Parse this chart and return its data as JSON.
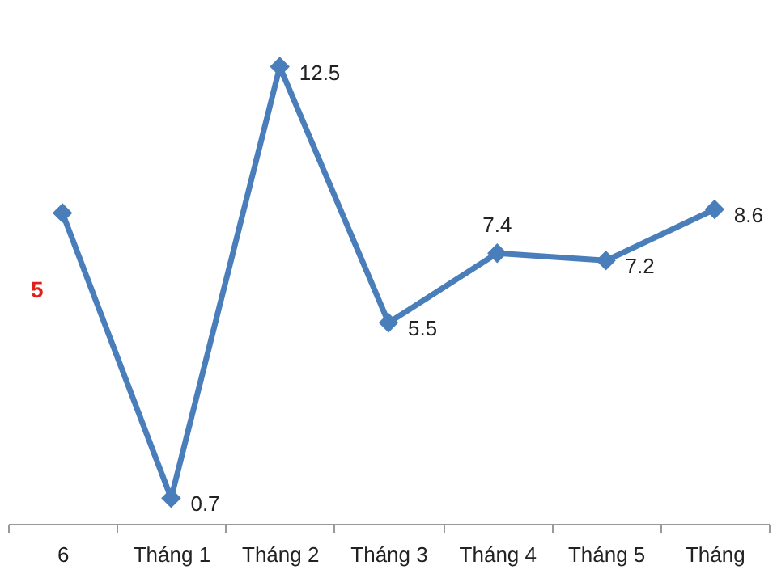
{
  "chart_data": {
    "type": "line",
    "categories": [
      "6",
      "Tháng 1",
      "Tháng 2",
      "Tháng 3",
      "Tháng 4",
      "Tháng 5",
      "Tháng"
    ],
    "series": [
      {
        "color": "#4a7ebb",
        "values": [
          8.5,
          0.7,
          12.5,
          5.5,
          7.4,
          7.2,
          8.6
        ],
        "value_labels": [
          null,
          "0.7",
          "12.5",
          "5.5",
          "7.4",
          "7.2",
          "8.6"
        ]
      }
    ],
    "annotations": [
      "5"
    ],
    "marker": "diamond",
    "grid": false,
    "tick_labels": "x"
  }
}
